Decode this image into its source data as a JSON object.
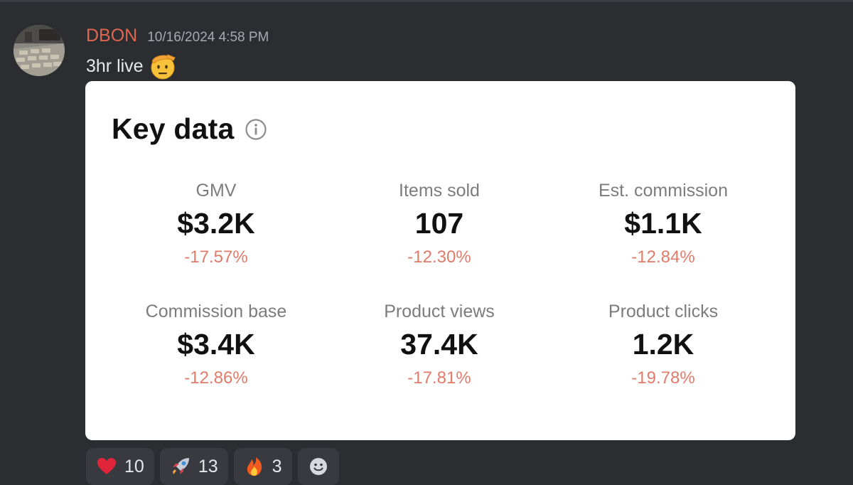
{
  "message": {
    "username": "DBON",
    "timestamp": "10/16/2024 4:58 PM",
    "text": "3hr live",
    "emoji": "saluting-face-emoji",
    "colors": {
      "username": "#e0664f",
      "background": "#2b2d31",
      "change_negative": "#e07b6a"
    }
  },
  "card": {
    "title": "Key data",
    "metrics": [
      {
        "label": "GMV",
        "value": "$3.2K",
        "change": "-17.57%"
      },
      {
        "label": "Items sold",
        "value": "107",
        "change": "-12.30%"
      },
      {
        "label": "Est. commission",
        "value": "$1.1K",
        "change": "-12.84%"
      },
      {
        "label": "Commission base",
        "value": "$3.4K",
        "change": "-12.86%"
      },
      {
        "label": "Product views",
        "value": "37.4K",
        "change": "-17.81%"
      },
      {
        "label": "Product clicks",
        "value": "1.2K",
        "change": "-19.78%"
      }
    ]
  },
  "reactions": [
    {
      "icon": "heart-icon",
      "count": "10"
    },
    {
      "icon": "rocket-icon",
      "count": "13"
    },
    {
      "icon": "fire-icon",
      "count": "3"
    },
    {
      "icon": "add-reaction-icon"
    }
  ]
}
